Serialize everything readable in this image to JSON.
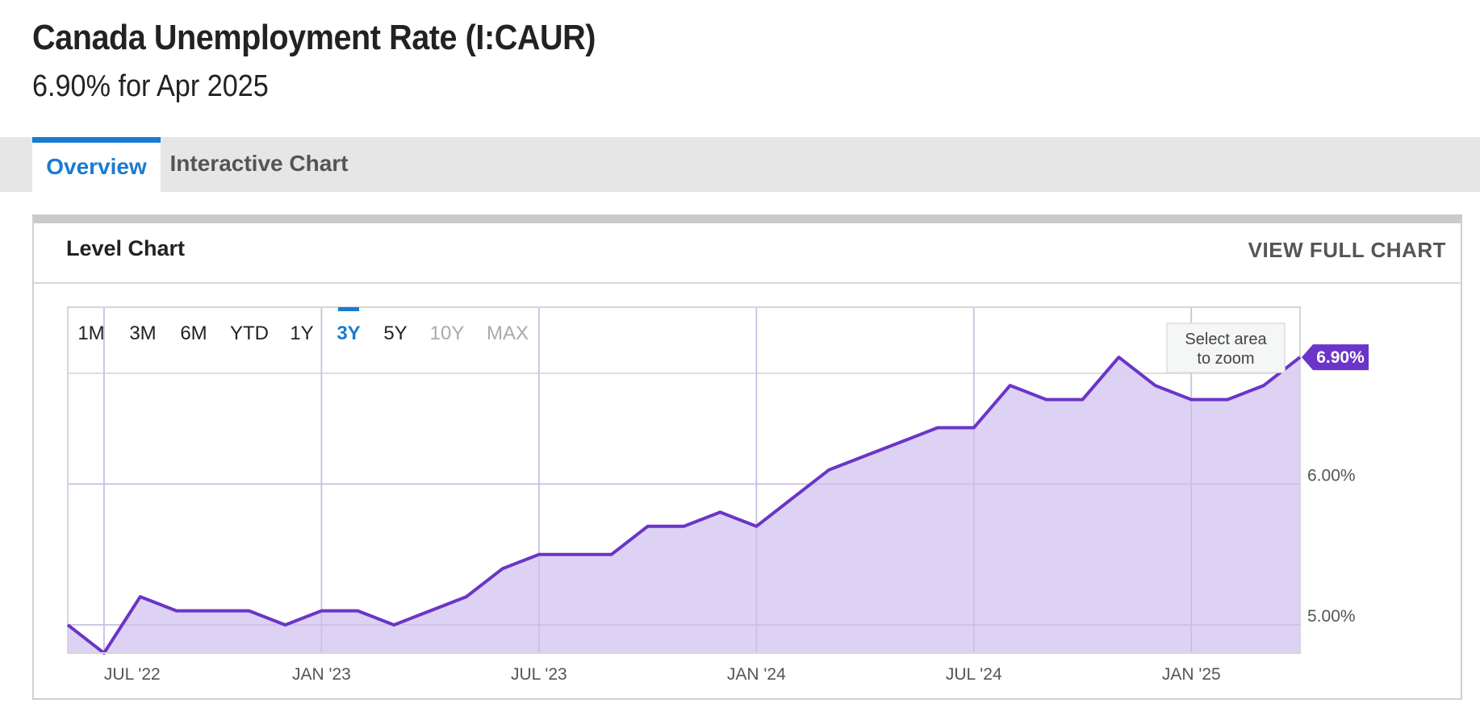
{
  "header": {
    "title": "Canada Unemployment Rate (I:CAUR)",
    "subtitle": "6.90% for Apr 2025"
  },
  "tabs": [
    {
      "label": "Overview",
      "active": true
    },
    {
      "label": "Interactive Chart",
      "active": false
    }
  ],
  "card": {
    "title": "Level Chart",
    "view_full_label": "VIEW FULL CHART"
  },
  "chart_controls": {
    "ranges": [
      {
        "label": "1M",
        "state": "enabled"
      },
      {
        "label": "3M",
        "state": "enabled"
      },
      {
        "label": "6M",
        "state": "enabled"
      },
      {
        "label": "YTD",
        "state": "enabled"
      },
      {
        "label": "1Y",
        "state": "enabled"
      },
      {
        "label": "3Y",
        "state": "selected"
      },
      {
        "label": "5Y",
        "state": "enabled"
      },
      {
        "label": "10Y",
        "state": "disabled"
      },
      {
        "label": "MAX",
        "state": "disabled"
      }
    ],
    "zoom_hint_lines": [
      "Select area",
      "to zoom"
    ]
  },
  "colors": {
    "line": "#6a35c8",
    "fill": "#d9cdf2",
    "accent": "#1a7bd1",
    "badge": "#6a35c8"
  },
  "chart_data": {
    "type": "area",
    "title": "",
    "xlabel": "",
    "ylabel": "",
    "x": [
      "2022-06",
      "2022-07",
      "2022-08",
      "2022-09",
      "2022-10",
      "2022-11",
      "2022-12",
      "2023-01",
      "2023-02",
      "2023-03",
      "2023-04",
      "2023-05",
      "2023-06",
      "2023-07",
      "2023-08",
      "2023-09",
      "2023-10",
      "2023-11",
      "2023-12",
      "2024-01",
      "2024-02",
      "2024-03",
      "2024-04",
      "2024-05",
      "2024-06",
      "2024-07",
      "2024-08",
      "2024-09",
      "2024-10",
      "2024-11",
      "2024-12",
      "2025-01",
      "2025-02",
      "2025-03",
      "2025-04"
    ],
    "values": [
      5.0,
      4.8,
      5.2,
      5.1,
      5.1,
      5.1,
      5.0,
      5.1,
      5.1,
      5.0,
      5.1,
      5.2,
      5.4,
      5.5,
      5.5,
      5.5,
      5.7,
      5.7,
      5.8,
      5.7,
      5.9,
      6.1,
      6.2,
      6.3,
      6.4,
      6.4,
      6.7,
      6.6,
      6.6,
      6.9,
      6.7,
      6.6,
      6.6,
      6.7,
      6.9
    ],
    "series": [
      {
        "values": [
          5.0,
          4.8,
          5.2,
          5.1,
          5.1,
          5.1,
          5.0,
          5.1,
          5.1,
          5.0,
          5.1,
          5.2,
          5.4,
          5.5,
          5.5,
          5.5,
          5.7,
          5.7,
          5.8,
          5.7,
          5.9,
          6.1,
          6.2,
          6.3,
          6.4,
          6.4,
          6.7,
          6.6,
          6.6,
          6.9,
          6.7,
          6.6,
          6.6,
          6.7,
          6.9
        ]
      }
    ],
    "x_ticks": [
      "2022-07",
      "2023-01",
      "2023-07",
      "2024-01",
      "2024-07",
      "2025-01"
    ],
    "x_tick_labels": [
      "JUL '22",
      "JAN '23",
      "JUL '23",
      "JAN '24",
      "JUL '24",
      "JAN '25"
    ],
    "y_ticks": [
      5.0,
      6.0
    ],
    "y_tick_labels": [
      "5.00%",
      "6.00%"
    ],
    "ylim": [
      4.8,
      7.25
    ],
    "grid": true,
    "last_value_label": "6.90%",
    "axis_side_y": "right"
  }
}
